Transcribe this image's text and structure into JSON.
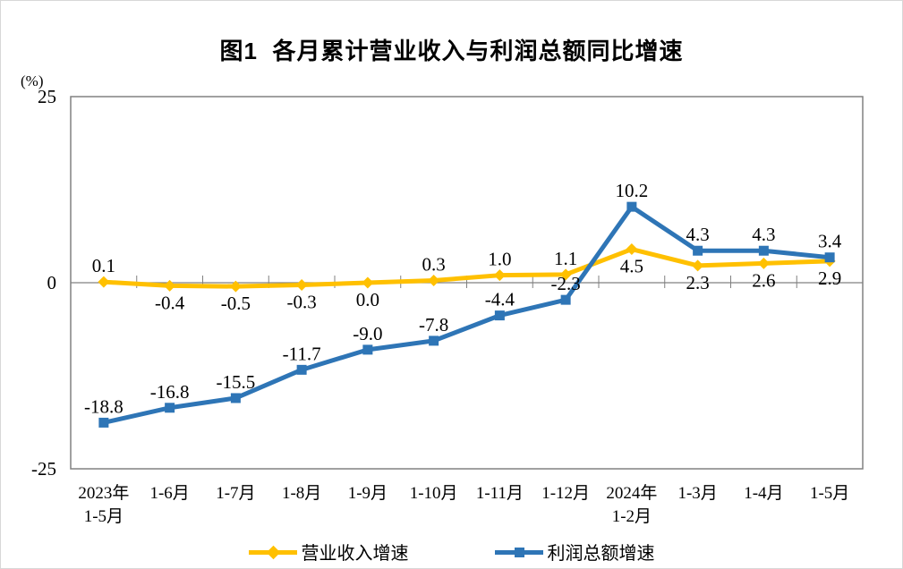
{
  "chart_data": {
    "type": "line",
    "title": "图1  各月累计营业收入与利润总额同比增速",
    "unit_label": "(%)",
    "categories": [
      "2023年\n1-5月",
      "1-6月",
      "1-7月",
      "1-8月",
      "1-9月",
      "1-10月",
      "1-11月",
      "1-12月",
      "2024年\n1-2月",
      "1-3月",
      "1-4月",
      "1-5月"
    ],
    "series": [
      {
        "name": "营业收入增速",
        "marker": "diamond",
        "color": "#FFC000",
        "values": [
          0.1,
          -0.4,
          -0.5,
          -0.3,
          0.0,
          0.3,
          1.0,
          1.1,
          4.5,
          2.3,
          2.6,
          2.9
        ],
        "label_side": [
          "above",
          "below",
          "below",
          "below",
          "below",
          "above",
          "above",
          "above",
          "below",
          "below",
          "below",
          "below"
        ]
      },
      {
        "name": "利润总额增速",
        "marker": "square",
        "color": "#2E75B6",
        "values": [
          -18.8,
          -16.8,
          -15.5,
          -11.7,
          -9.0,
          -7.8,
          -4.4,
          -2.3,
          10.2,
          4.3,
          4.3,
          3.4
        ],
        "label_side": [
          "above",
          "above",
          "above",
          "above",
          "above",
          "above",
          "above",
          "above",
          "above",
          "above",
          "above",
          "above"
        ]
      }
    ],
    "y_axis": {
      "min": -25,
      "max": 25,
      "ticks": [
        25,
        0,
        -25
      ]
    },
    "axis_color": "#808080",
    "label_color": "#000000",
    "legend_position": "bottom",
    "grid": false
  }
}
